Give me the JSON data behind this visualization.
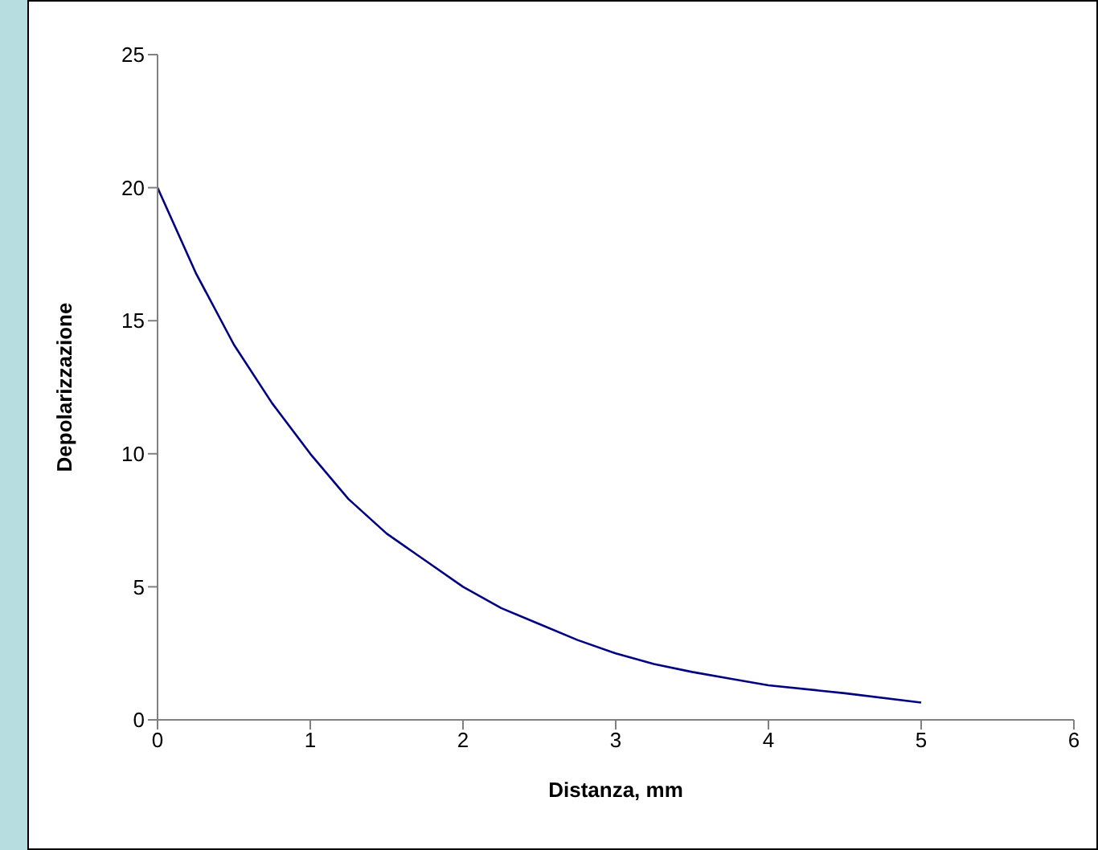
{
  "chart_data": {
    "type": "line",
    "xlabel": "Distanza, mm",
    "ylabel": "Depolarizzazione",
    "x": [
      0,
      0.25,
      0.5,
      0.75,
      1,
      1.25,
      1.5,
      1.75,
      2,
      2.25,
      2.5,
      2.75,
      3,
      3.25,
      3.5,
      3.75,
      4,
      4.5,
      5
    ],
    "series": [
      {
        "color": "#000080",
        "values": [
          20,
          16.8,
          14.1,
          11.9,
          10,
          8.3,
          7,
          6,
          5,
          4.2,
          3.6,
          3,
          2.5,
          2.1,
          1.8,
          1.55,
          1.3,
          1,
          0.65
        ]
      }
    ],
    "xlim": [
      0,
      6
    ],
    "xticks": [
      0,
      1,
      2,
      3,
      4,
      5,
      6
    ],
    "ylim": [
      0,
      25
    ],
    "yticks": [
      0,
      5,
      10,
      15,
      20,
      25
    ],
    "grid": false,
    "legend": false,
    "marker": "none",
    "line_style": "solid"
  }
}
